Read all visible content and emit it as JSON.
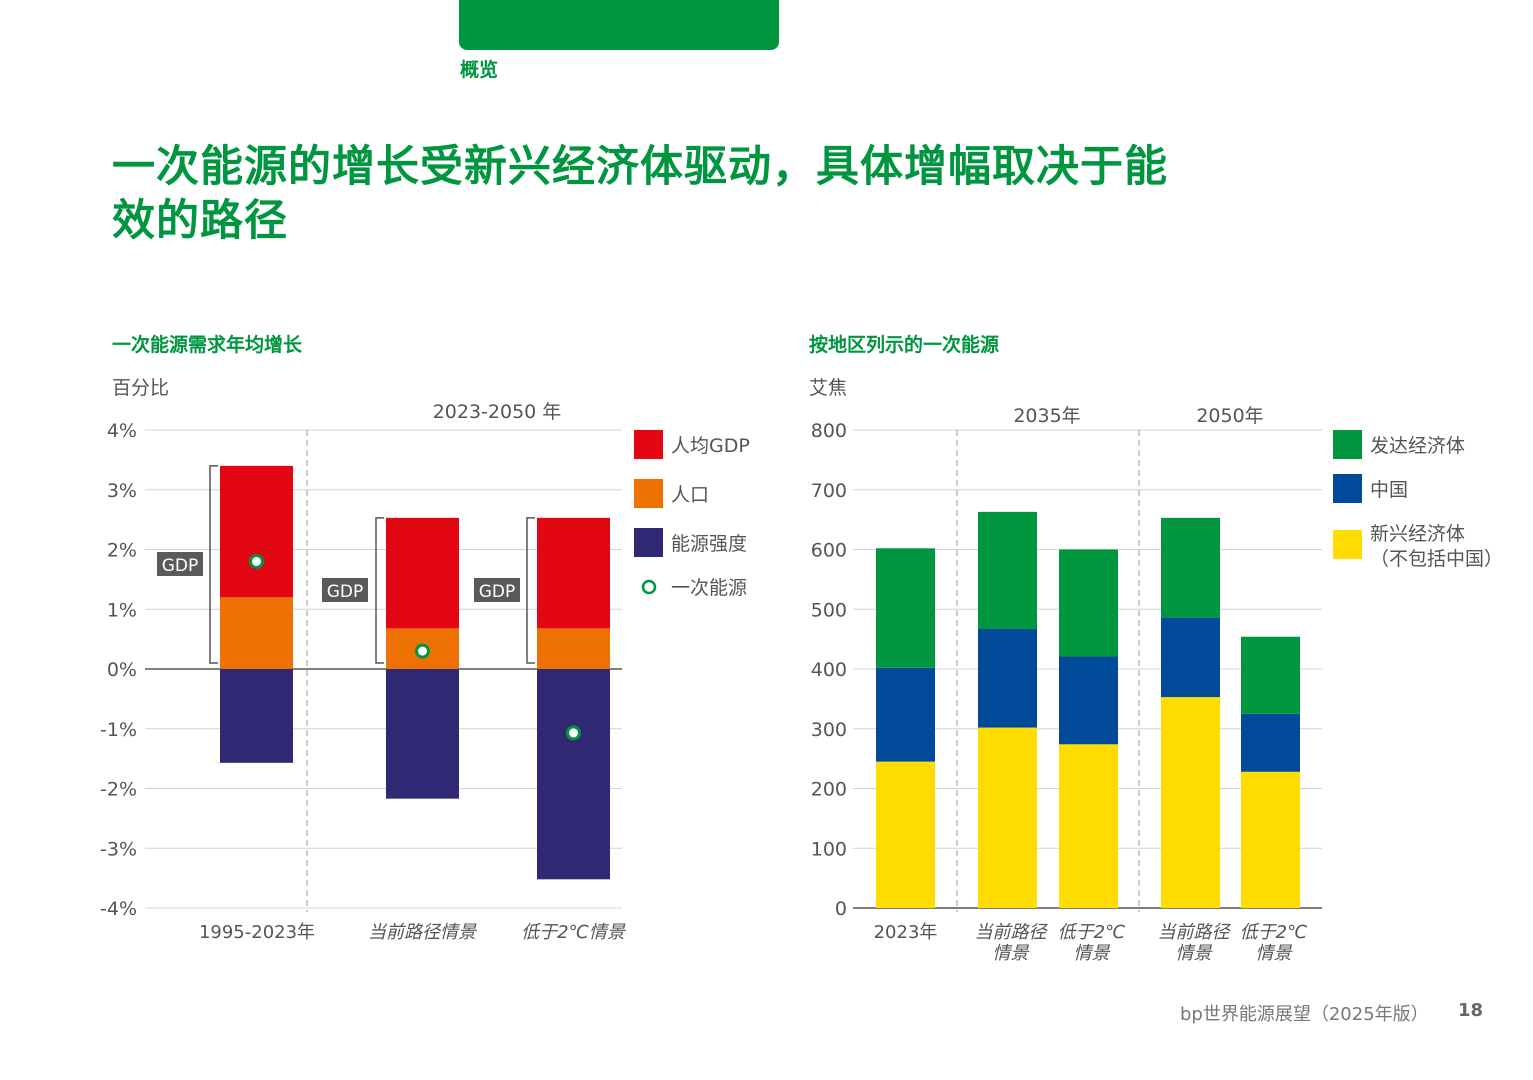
{
  "header": {
    "section": "概览"
  },
  "page_title": "一次能源的增长受新兴经济体驱动，具体增幅取决于能效的路径",
  "footer": {
    "report": "bp世界能源展望（2025年版）",
    "page": "18"
  },
  "colors": {
    "brand_green": "#009640",
    "gdp_per_capita": "#E30613",
    "population": "#EE7203",
    "energy_intensity": "#312873",
    "developed": "#009640",
    "china": "#004A99",
    "emerging": "#FFDD00"
  },
  "chart_data": [
    {
      "type": "bar",
      "stacked": true,
      "title": "一次能源需求年均增长",
      "unit": "百分比",
      "group_label": "2023-2050 年",
      "categories": [
        "1995-2023年",
        "当前路径情景",
        "低于2℃情景"
      ],
      "series": [
        {
          "name": "人均GDP",
          "values": [
            2.2,
            1.85,
            1.85
          ]
        },
        {
          "name": "人口",
          "values": [
            1.2,
            0.68,
            0.68
          ]
        },
        {
          "name": "能源强度",
          "values": [
            -1.57,
            -2.17,
            -3.52
          ]
        }
      ],
      "markers": {
        "name": "一次能源",
        "values": [
          1.8,
          0.3,
          -1.07
        ]
      },
      "bracket_label": "GDP",
      "yticks": [
        "4%",
        "3%",
        "2%",
        "1%",
        "0%",
        "-1%",
        "-2%",
        "-3%",
        "-4%"
      ],
      "ylim": [
        -4,
        4
      ],
      "grid": true,
      "legend_position": "right"
    },
    {
      "type": "bar",
      "stacked": true,
      "title": "按地区列示的一次能源",
      "unit": "艾焦",
      "group_labels": [
        "2035年",
        "2050年"
      ],
      "categories": [
        "2023年",
        "当前路径情景",
        "低于2℃情景",
        "当前路径情景",
        "低于2℃情景"
      ],
      "series": [
        {
          "name": "新兴经济体（不包括中国）",
          "values": [
            245,
            302,
            274,
            353,
            228
          ]
        },
        {
          "name": "中国",
          "values": [
            157,
            165,
            147,
            133,
            97
          ]
        },
        {
          "name": "发达经济体",
          "values": [
            200,
            196,
            179,
            167,
            129
          ]
        }
      ],
      "legend_order": [
        "发达经济体",
        "中国",
        "新兴经济体（不包括中国）"
      ],
      "yticks": [
        "800",
        "700",
        "600",
        "500",
        "400",
        "300",
        "200",
        "100",
        "0"
      ],
      "ylim": [
        0,
        800
      ],
      "grid": true,
      "legend_position": "right"
    }
  ]
}
